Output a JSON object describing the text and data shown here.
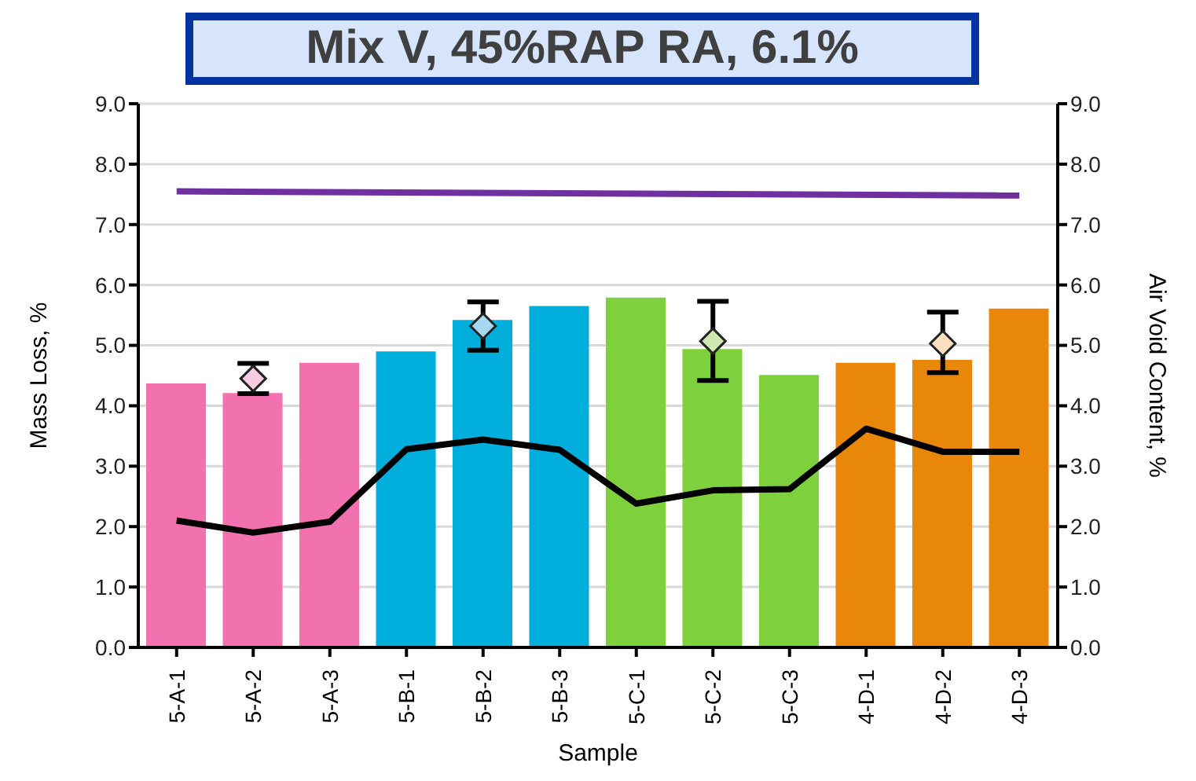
{
  "chart_data": {
    "type": "bar",
    "title": "Mix V, 45%RAP RA, 6.1%",
    "xlabel": "Sample",
    "ylabel": "Mass Loss, %",
    "y2label": "Air Void Content, %",
    "categories": [
      "5-A-1",
      "5-A-2",
      "5-A-3",
      "5-B-1",
      "5-B-2",
      "5-B-3",
      "5-C-1",
      "5-C-2",
      "5-C-3",
      "4-D-1",
      "4-D-2",
      "4-D-3"
    ],
    "series": [
      {
        "values": [
          4.37,
          4.21,
          4.71,
          4.9,
          5.42,
          5.65,
          5.79,
          4.94,
          4.51,
          4.71,
          4.76,
          5.61
        ],
        "colors": [
          "#f272b0",
          "#f272b0",
          "#f272b0",
          "#00aedb",
          "#00aedb",
          "#00aedb",
          "#7ed03c",
          "#7ed03c",
          "#7ed03c",
          "#e8870a",
          "#e8870a",
          "#e8870a"
        ]
      },
      {
        "type": "line",
        "color": "#000000",
        "values": [
          2.1,
          1.9,
          2.08,
          3.28,
          3.44,
          3.27,
          2.38,
          2.6,
          2.62,
          3.62,
          3.24,
          3.24
        ]
      },
      {
        "type": "line",
        "color": "#7030a0",
        "values": [
          7.55,
          null,
          null,
          null,
          null,
          null,
          null,
          null,
          null,
          null,
          null,
          7.48
        ]
      },
      {
        "type": "scatter",
        "marker": "diamond",
        "x": [
          "5-A-2",
          "5-B-2",
          "5-C-2",
          "4-D-2"
        ],
        "values": [
          4.45,
          5.32,
          5.07,
          5.03
        ],
        "errors": [
          [
            4.2,
            4.7
          ],
          [
            4.92,
            5.72
          ],
          [
            4.42,
            5.73
          ],
          [
            4.55,
            5.55
          ]
        ],
        "colors": [
          "#f8cce0",
          "#a8d8f0",
          "#cfe8b0",
          "#fbe0c0"
        ]
      }
    ],
    "ylim": [
      0,
      9
    ],
    "yticks": [
      {
        "value": 0,
        "label": "0.0"
      },
      {
        "value": 1,
        "label": "1.0"
      },
      {
        "value": 2,
        "label": "2.0"
      },
      {
        "value": 3,
        "label": "3.0"
      },
      {
        "value": 4,
        "label": "4.0"
      },
      {
        "value": 5,
        "label": "5.0"
      },
      {
        "value": 6,
        "label": "6.0"
      },
      {
        "value": 7,
        "label": "7.0"
      },
      {
        "value": 8,
        "label": "8.0"
      },
      {
        "value": 9,
        "label": "9.0"
      }
    ],
    "y2lim": [
      0,
      9
    ],
    "y2ticks": [
      {
        "value": 0,
        "label": "0.0"
      },
      {
        "value": 1,
        "label": "1.0"
      },
      {
        "value": 2,
        "label": "2.0"
      },
      {
        "value": 3,
        "label": "3.0"
      },
      {
        "value": 4,
        "label": "4.0"
      },
      {
        "value": 5,
        "label": "5.0"
      },
      {
        "value": 6,
        "label": "6.0"
      },
      {
        "value": 7,
        "label": "7.0"
      },
      {
        "value": 8,
        "label": "8.0"
      },
      {
        "value": 9,
        "label": "9.0"
      }
    ],
    "grid": "y",
    "legend": false
  }
}
